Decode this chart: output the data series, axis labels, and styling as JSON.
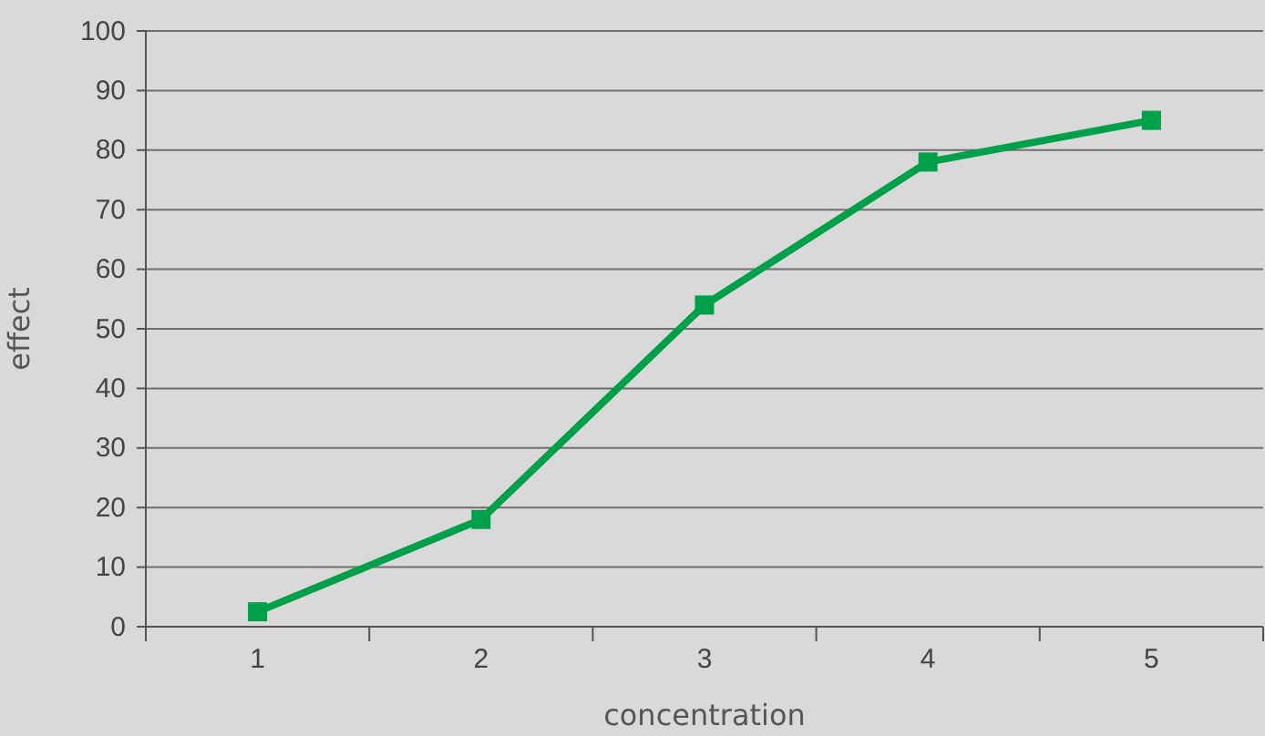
{
  "chart_data": {
    "type": "line",
    "xlabel": "concentration",
    "ylabel": "effect",
    "categories": [
      "1",
      "2",
      "3",
      "4",
      "5"
    ],
    "series": [
      {
        "color": "#00a04a",
        "values": [
          2.5,
          18,
          54,
          78,
          85
        ]
      }
    ],
    "ylim": [
      0,
      100
    ],
    "yticks": [
      0,
      10,
      20,
      30,
      40,
      50,
      60,
      70,
      80,
      90,
      100
    ],
    "grid": "y",
    "marker": "square",
    "line_style": "solid"
  }
}
